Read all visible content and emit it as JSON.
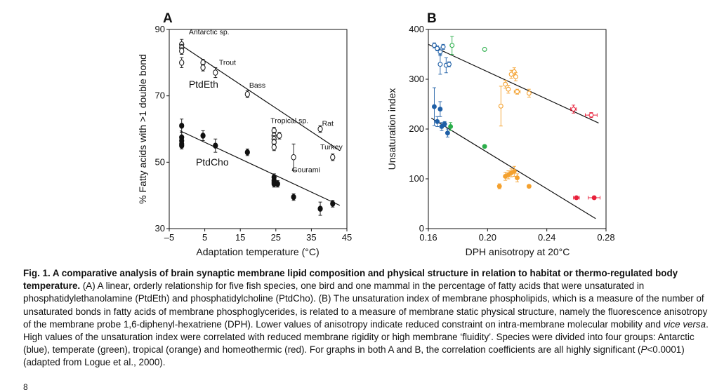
{
  "chart_data": [
    {
      "type": "scatter",
      "panel_letter": "A",
      "xlabel": "Adaptation temperature (°C)",
      "ylabel": "% Fatty acids with >1 double bond",
      "xlim": [
        -5,
        45
      ],
      "ylim": [
        30,
        90
      ],
      "x_ticks": [
        "–5",
        "5",
        "15",
        "25",
        "35",
        "45"
      ],
      "x_tick_values": [
        -5,
        5,
        15,
        25,
        35,
        45
      ],
      "y_ticks": [
        "30",
        "50",
        "70",
        "90"
      ],
      "y_tick_values": [
        30,
        50,
        70,
        90
      ],
      "grid": false,
      "series": [
        {
          "name": "PtdEth",
          "marker": "open",
          "points": [
            {
              "x": -1.5,
              "y": 85.5,
              "err": 1.5
            },
            {
              "x": -1.5,
              "y": 84.5,
              "err": 1.0
            },
            {
              "x": -1.5,
              "y": 83.5,
              "err": 1.0
            },
            {
              "x": -1.5,
              "y": 80.0,
              "err": 1.5
            },
            {
              "x": 4.5,
              "y": 80.0,
              "err": 1.0
            },
            {
              "x": 4.5,
              "y": 78.5,
              "err": 1.0
            },
            {
              "x": 8.0,
              "y": 77.0,
              "err": 1.5
            },
            {
              "x": 17.0,
              "y": 70.5,
              "err": 1.0
            },
            {
              "x": 24.5,
              "y": 59.5,
              "err": 1.0
            },
            {
              "x": 24.5,
              "y": 58.0,
              "err": 1.0
            },
            {
              "x": 24.5,
              "y": 57.0,
              "err": 1.0
            },
            {
              "x": 24.5,
              "y": 56.0,
              "err": 1.0
            },
            {
              "x": 24.5,
              "y": 54.5,
              "err": 1.0
            },
            {
              "x": 26.0,
              "y": 58.0,
              "err": 1.0
            },
            {
              "x": 30.0,
              "y": 51.5,
              "err": 4.0
            },
            {
              "x": 37.5,
              "y": 60.0,
              "err": 1.0
            },
            {
              "x": 41.0,
              "y": 51.5,
              "err": 1.0
            }
          ],
          "fit": {
            "x": [
              -2,
              43
            ],
            "y": [
              85.5,
              53.5
            ]
          }
        },
        {
          "name": "PtdCho",
          "marker": "filled",
          "points": [
            {
              "x": -1.5,
              "y": 61.0,
              "err": 2.0
            },
            {
              "x": -1.5,
              "y": 57.5,
              "err": 1.5
            },
            {
              "x": -1.5,
              "y": 56.5,
              "err": 1.0
            },
            {
              "x": -1.5,
              "y": 55.5,
              "err": 1.0
            },
            {
              "x": -1.5,
              "y": 55.0,
              "err": 1.0
            },
            {
              "x": 4.5,
              "y": 58.0,
              "err": 1.5
            },
            {
              "x": 8.0,
              "y": 55.0,
              "err": 2.0
            },
            {
              "x": 17.0,
              "y": 53.0,
              "err": 1.0
            },
            {
              "x": 24.5,
              "y": 45.5,
              "err": 1.0
            },
            {
              "x": 24.5,
              "y": 44.5,
              "err": 1.0
            },
            {
              "x": 24.5,
              "y": 44.0,
              "err": 1.0
            },
            {
              "x": 24.5,
              "y": 43.5,
              "err": 1.0
            },
            {
              "x": 25.5,
              "y": 43.5,
              "err": 1.0
            },
            {
              "x": 30.0,
              "y": 39.5,
              "err": 1.0
            },
            {
              "x": 37.5,
              "y": 36.0,
              "err": 2.0
            },
            {
              "x": 41.0,
              "y": 37.5,
              "err": 1.0
            }
          ],
          "fit": {
            "x": [
              -2,
              43
            ],
            "y": [
              59.5,
              37.0
            ]
          }
        }
      ],
      "annotations": [
        {
          "text": "Antarctic sp.",
          "x": 0.5,
          "y": 88.5
        },
        {
          "text": "Trout",
          "x": 9.0,
          "y": 79.3
        },
        {
          "text": "Bass",
          "x": 17.5,
          "y": 72.5
        },
        {
          "text": "Tropical sp.",
          "x": 23.5,
          "y": 61.8
        },
        {
          "text": "Rat",
          "x": 38.0,
          "y": 61.0
        },
        {
          "text": "Turkey",
          "x": 37.5,
          "y": 53.9
        },
        {
          "text": "Gourami",
          "x": 29.5,
          "y": 47.0
        },
        {
          "text": "PtdEth",
          "x": 0.5,
          "y": 72.5
        },
        {
          "text": "PtdCho",
          "x": 2.5,
          "y": 49.0
        }
      ]
    },
    {
      "type": "scatter",
      "panel_letter": "B",
      "xlabel": "DPH anisotropy at 20°C",
      "ylabel": "Unsaturation index",
      "xlim": [
        0.16,
        0.28
      ],
      "ylim": [
        0,
        400
      ],
      "x_ticks": [
        "0.16",
        "0.20",
        "0.24",
        "0.28"
      ],
      "x_tick_values": [
        0.16,
        0.2,
        0.24,
        0.28
      ],
      "y_ticks": [
        "0",
        "100",
        "200",
        "300",
        "400"
      ],
      "y_tick_values": [
        0,
        100,
        200,
        300,
        400
      ],
      "grid": false,
      "group_colors": {
        "antarctic": "#1f5fa6",
        "temperate": "#2bae4a",
        "tropical": "#f4a12e",
        "homeothermic": "#e8203a"
      },
      "series": [
        {
          "marker": "open",
          "points": [
            {
              "x": 0.164,
              "y": 368,
              "group": "antarctic",
              "ey": 5,
              "ex": 0
            },
            {
              "x": 0.166,
              "y": 362,
              "group": "antarctic",
              "ey": 5,
              "ex": 0
            },
            {
              "x": 0.168,
              "y": 355,
              "group": "antarctic",
              "ey": 8,
              "ex": 0
            },
            {
              "x": 0.17,
              "y": 365,
              "group": "antarctic",
              "ey": 5,
              "ex": 0
            },
            {
              "x": 0.168,
              "y": 330,
              "group": "antarctic",
              "ey": 20,
              "ex": 0
            },
            {
              "x": 0.172,
              "y": 328,
              "group": "antarctic",
              "ey": 15,
              "ex": 0
            },
            {
              "x": 0.174,
              "y": 330,
              "group": "antarctic",
              "ey": 5,
              "ex": 0
            },
            {
              "x": 0.176,
              "y": 368,
              "group": "temperate",
              "ey": 18,
              "ex": 0
            },
            {
              "x": 0.198,
              "y": 360,
              "group": "temperate",
              "ey": 0,
              "ex": 0
            },
            {
              "x": 0.209,
              "y": 246,
              "group": "tropical",
              "ey": 40,
              "ex": 0
            },
            {
              "x": 0.212,
              "y": 290,
              "group": "tropical",
              "ey": 8,
              "ex": 0
            },
            {
              "x": 0.214,
              "y": 280,
              "group": "tropical",
              "ey": 8,
              "ex": 0
            },
            {
              "x": 0.216,
              "y": 310,
              "group": "tropical",
              "ey": 8,
              "ex": 0
            },
            {
              "x": 0.218,
              "y": 315,
              "group": "tropical",
              "ey": 8,
              "ex": 0
            },
            {
              "x": 0.219,
              "y": 305,
              "group": "tropical",
              "ey": 8,
              "ex": 0
            },
            {
              "x": 0.22,
              "y": 275,
              "group": "tropical",
              "ey": 5,
              "ex": 0.002
            },
            {
              "x": 0.228,
              "y": 272,
              "group": "tropical",
              "ey": 8,
              "ex": 0
            },
            {
              "x": 0.258,
              "y": 240,
              "group": "homeothermic",
              "ey": 8,
              "ex": 0.002
            },
            {
              "x": 0.27,
              "y": 228,
              "group": "homeothermic",
              "ey": 5,
              "ex": 0.004
            }
          ],
          "fit": {
            "x": [
              0.16,
              0.275
            ],
            "y": [
              370,
              212
            ]
          }
        },
        {
          "marker": "filled",
          "points": [
            {
              "x": 0.164,
              "y": 245,
              "group": "antarctic",
              "ey": 38,
              "ex": 0
            },
            {
              "x": 0.166,
              "y": 215,
              "group": "antarctic",
              "ey": 10,
              "ex": 0
            },
            {
              "x": 0.168,
              "y": 240,
              "group": "antarctic",
              "ey": 15,
              "ex": 0
            },
            {
              "x": 0.169,
              "y": 205,
              "group": "antarctic",
              "ey": 8,
              "ex": 0
            },
            {
              "x": 0.171,
              "y": 210,
              "group": "antarctic",
              "ey": 5,
              "ex": 0
            },
            {
              "x": 0.173,
              "y": 192,
              "group": "antarctic",
              "ey": 8,
              "ex": 0
            },
            {
              "x": 0.175,
              "y": 205,
              "group": "temperate",
              "ey": 8,
              "ex": 0
            },
            {
              "x": 0.198,
              "y": 165,
              "group": "temperate",
              "ey": 0,
              "ex": 0
            },
            {
              "x": 0.208,
              "y": 85,
              "group": "tropical",
              "ey": 5,
              "ex": 0
            },
            {
              "x": 0.212,
              "y": 105,
              "group": "tropical",
              "ey": 8,
              "ex": 0
            },
            {
              "x": 0.214,
              "y": 108,
              "group": "tropical",
              "ey": 8,
              "ex": 0
            },
            {
              "x": 0.216,
              "y": 112,
              "group": "tropical",
              "ey": 8,
              "ex": 0
            },
            {
              "x": 0.218,
              "y": 115,
              "group": "tropical",
              "ey": 10,
              "ex": 0
            },
            {
              "x": 0.22,
              "y": 102,
              "group": "tropical",
              "ey": 8,
              "ex": 0
            },
            {
              "x": 0.228,
              "y": 85,
              "group": "tropical",
              "ey": 3,
              "ex": 0
            },
            {
              "x": 0.26,
              "y": 62,
              "group": "homeothermic",
              "ey": 3,
              "ex": 0.002
            },
            {
              "x": 0.272,
              "y": 62,
              "group": "homeothermic",
              "ey": 3,
              "ex": 0.004
            }
          ],
          "fit": {
            "x": [
              0.162,
              0.273
            ],
            "y": [
              222,
              20
            ]
          }
        }
      ]
    }
  ],
  "caption": {
    "title": "Fig. 1. A comparative analysis of brain synaptic membrane lipid composition and physical structure in relation to habitat or thermo-regulated body temperature.",
    "part1": " (A) A linear, orderly relationship for five fish species, one bird and one mammal in the percentage of fatty acids that were unsaturated in phosphatidylethanolamine (PtdEth) and phosphatidylcholine (PtdCho). (B) The unsaturation index of membrane phospholipids, which is a measure of the number of unsaturated bonds in fatty acids of membrane phosphoglycerides, is related to a measure of membrane static physical structure, namely the fluorescence anisotropy of the membrane probe 1,6-diphenyl-hexatriene (DPH). Lower values of anisotropy indicate reduced constraint on intra-membrane molecular mobility and ",
    "italic1": "vice versa",
    "part2": ". High values of the unsaturation index were correlated with reduced membrane rigidity or high membrane ‘fluidity’. Species were divided into four groups: Antarctic (blue), temperate (green), tropical (orange) and homeothermic (red). For graphs in both A and B, the correlation coefficients are all highly significant (",
    "italic2": "P",
    "part3": "<0.0001) (adapted from Logue et al., 2000)."
  },
  "page_number": "8"
}
